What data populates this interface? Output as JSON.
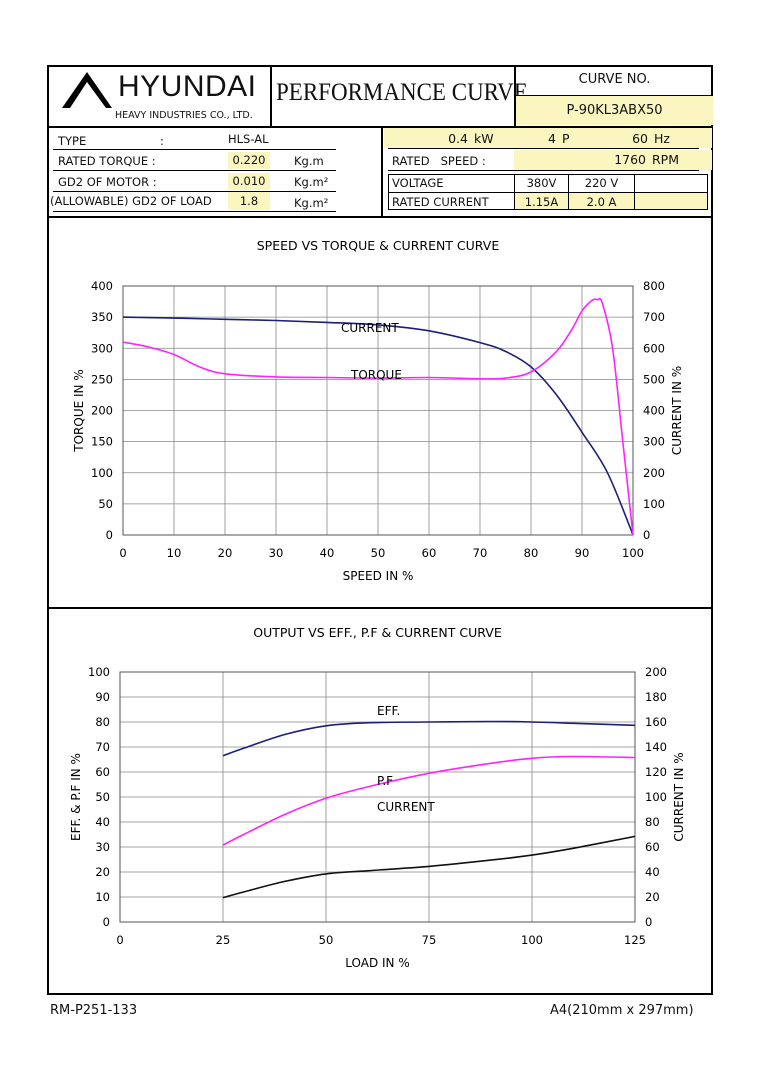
{
  "header": {
    "company": "HYUNDAI",
    "company_sub": "HEAVY INDUSTRIES CO., LTD.",
    "doc_title": "PERFORMANCE CURVE",
    "curve_no_label": "CURVE NO.",
    "curve_no": "P-90KL3ABX50"
  },
  "specs": {
    "type_label": "TYPE",
    "type_colon": ":",
    "type_value": "HLS-AL",
    "rated_torque_label": "RATED TORQUE :",
    "rated_torque_value": "0.220",
    "rated_torque_unit": "Kg.m",
    "gd2_motor_label": "GD2 OF MOTOR :",
    "gd2_motor_value": "0.010",
    "gd2_motor_unit": "Kg.m²",
    "gd2_load_label": "(ALLOWABLE) GD2 OF LOAD",
    "gd2_load_value": "1.8",
    "gd2_load_unit": "Kg.m²",
    "power_value": "0.4",
    "power_unit": "kW",
    "poles_value": "4",
    "poles_unit": "P",
    "freq_value": "60",
    "freq_unit": "Hz",
    "rated_speed_label": "RATED   SPEED :",
    "rated_speed_value": "1760",
    "rated_speed_unit": "RPM",
    "voltage_label": "VOLTAGE",
    "voltage_1": "380V",
    "voltage_2": "220 V",
    "rated_current_label": "RATED CURRENT",
    "current_1": "1.15A",
    "current_2": "2.0 A"
  },
  "chart_data": [
    {
      "type": "line",
      "title": "SPEED VS TORQUE & CURRENT CURVE",
      "xlabel": "SPEED IN %",
      "ylabel": "TORQUE IN %",
      "y2label": "CURRENT IN %",
      "xlim": [
        0,
        100
      ],
      "ylim": [
        0,
        400
      ],
      "y2lim": [
        0,
        800
      ],
      "xticks": [
        "0",
        "10",
        "20",
        "30",
        "40",
        "50",
        "60",
        "70",
        "80",
        "90",
        "100"
      ],
      "yticks": [
        "0",
        "50",
        "100",
        "150",
        "200",
        "250",
        "300",
        "350",
        "400"
      ],
      "y2ticks": [
        "0",
        "100",
        "200",
        "300",
        "400",
        "500",
        "600",
        "700",
        "800"
      ],
      "grid": true,
      "series": [
        {
          "name": "CURRENT",
          "axis": "right",
          "color": "#1c1f7a",
          "x": [
            0,
            10,
            20,
            30,
            40,
            50,
            60,
            70,
            75,
            80,
            85,
            90,
            95,
            100
          ],
          "y": [
            700,
            697,
            693,
            689,
            683,
            675,
            656,
            618,
            590,
            540,
            450,
            330,
            200,
            0
          ]
        },
        {
          "name": "TORQUE",
          "axis": "left",
          "color": "#ff22ff",
          "x": [
            0,
            5,
            10,
            15,
            20,
            30,
            40,
            50,
            60,
            70,
            75,
            80,
            85,
            88,
            90,
            92,
            93,
            94,
            96,
            98,
            100
          ],
          "y": [
            310,
            302,
            290,
            270,
            259,
            254,
            253,
            252,
            253,
            251,
            252,
            262,
            295,
            330,
            360,
            377,
            378,
            372,
            300,
            150,
            0
          ]
        }
      ],
      "annotations": [
        "CURRENT",
        "TORQUE"
      ]
    },
    {
      "type": "line",
      "title": "OUTPUT VS EFF., P.F & CURRENT CURVE",
      "xlabel": "LOAD IN %",
      "ylabel": "EFF. & P.F IN %",
      "y2label": "CURRENT IN %",
      "xlim": [
        0,
        125
      ],
      "ylim": [
        0,
        100
      ],
      "y2lim": [
        0,
        200
      ],
      "xticks": [
        "0",
        "25",
        "50",
        "75",
        "100",
        "125"
      ],
      "yticks": [
        "0",
        "10",
        "20",
        "30",
        "40",
        "50",
        "60",
        "70",
        "80",
        "90",
        "100"
      ],
      "y2ticks": [
        "0",
        "20",
        "40",
        "60",
        "80",
        "100",
        "120",
        "140",
        "160",
        "180",
        "200"
      ],
      "grid": true,
      "series": [
        {
          "name": "EFF.",
          "axis": "left",
          "color": "#1c1f7a",
          "x": [
            25,
            30,
            40,
            50,
            60,
            75,
            90,
            100,
            110,
            125
          ],
          "y": [
            66.5,
            69.5,
            75,
            78.5,
            79.7,
            80,
            80.2,
            80,
            79.5,
            78.7
          ]
        },
        {
          "name": "P.F",
          "axis": "left",
          "color": "#ff22ff",
          "x": [
            25,
            30,
            40,
            50,
            60,
            75,
            90,
            100,
            110,
            125
          ],
          "y": [
            30.8,
            35,
            43,
            49.5,
            54,
            59.5,
            63.5,
            65.5,
            66.2,
            65.8
          ]
        },
        {
          "name": "CURRENT",
          "axis": "right",
          "color": "#111111",
          "x": [
            25,
            30,
            40,
            50,
            60,
            75,
            90,
            100,
            110,
            125
          ],
          "y": [
            19.5,
            24,
            32.5,
            38.5,
            41,
            44.5,
            49.5,
            53.5,
            59,
            68.5
          ]
        }
      ],
      "annotations": [
        "EFF.",
        "P.F",
        "CURRENT"
      ]
    }
  ],
  "footer": {
    "doc_no": "RM-P251-133",
    "paper": "A4(210mm x 297mm)"
  }
}
